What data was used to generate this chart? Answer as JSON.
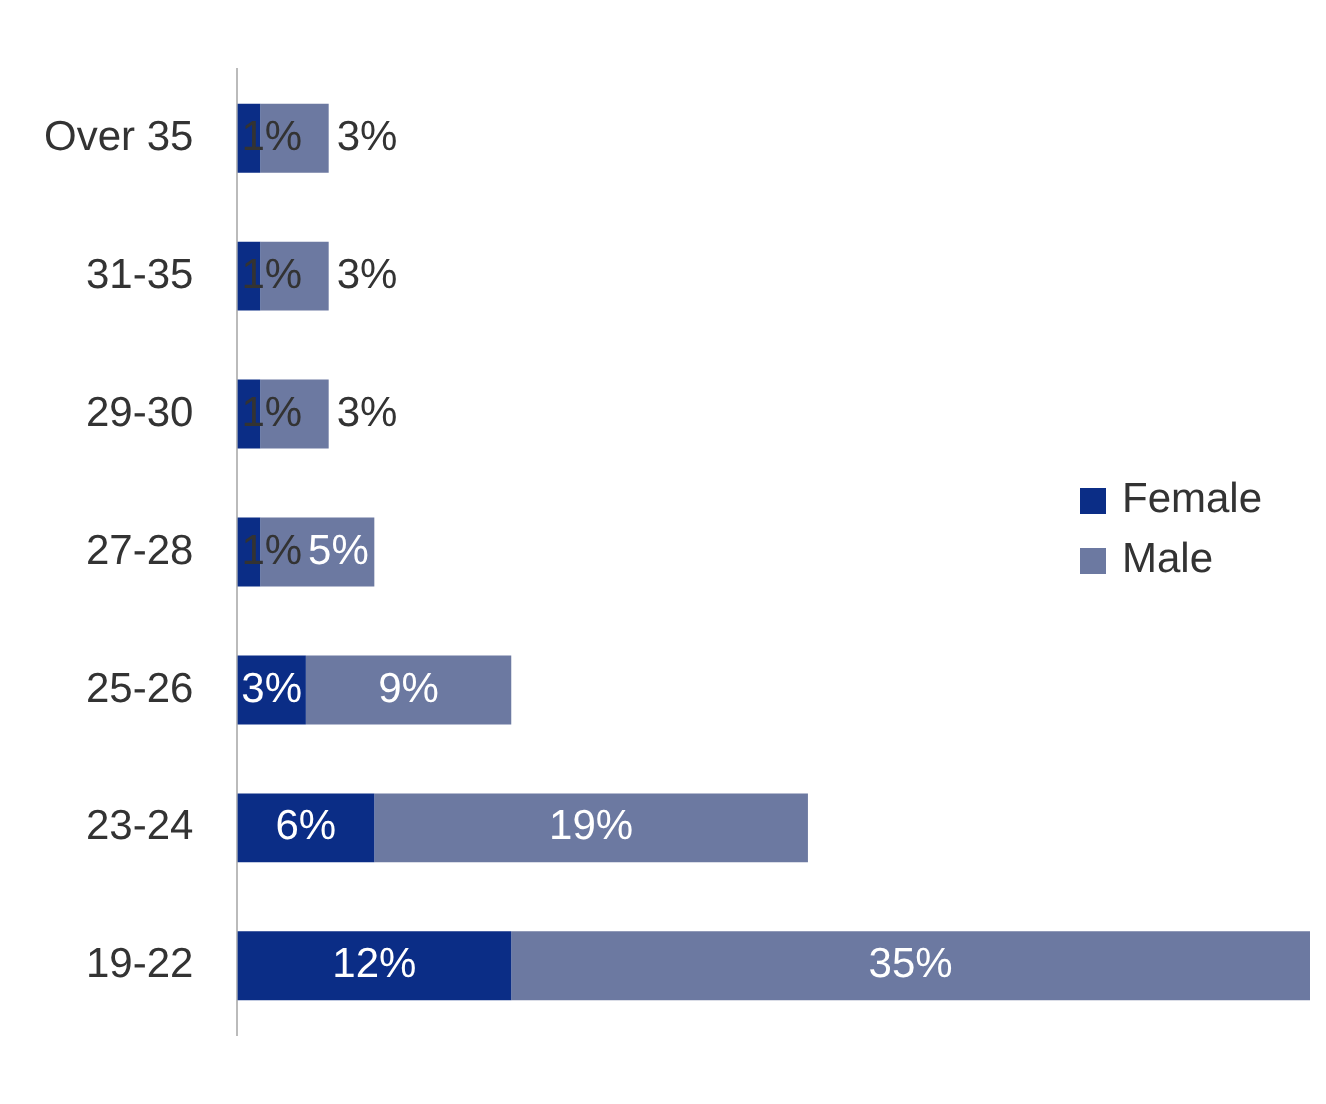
{
  "chart_data": {
    "type": "bar",
    "orientation": "horizontal",
    "stacked": true,
    "categories": [
      "Over 35",
      "31-35",
      "29-30",
      "27-28",
      "25-26",
      "23-24",
      "19-22"
    ],
    "series": [
      {
        "name": "Female",
        "color": "#0b2d86",
        "values": [
          1,
          1,
          1,
          1,
          3,
          6,
          12
        ],
        "value_labels": [
          "1%",
          "1%",
          "1%",
          "1%",
          "3%",
          "6%",
          "12%"
        ]
      },
      {
        "name": "Male",
        "color": "#6c79a1",
        "values": [
          3,
          3,
          3,
          5,
          9,
          19,
          35
        ],
        "value_labels": [
          "3%",
          "3%",
          "3%",
          "5%",
          "9%",
          "19%",
          "35%"
        ]
      }
    ],
    "legend": "right",
    "tick_labels": "y"
  }
}
